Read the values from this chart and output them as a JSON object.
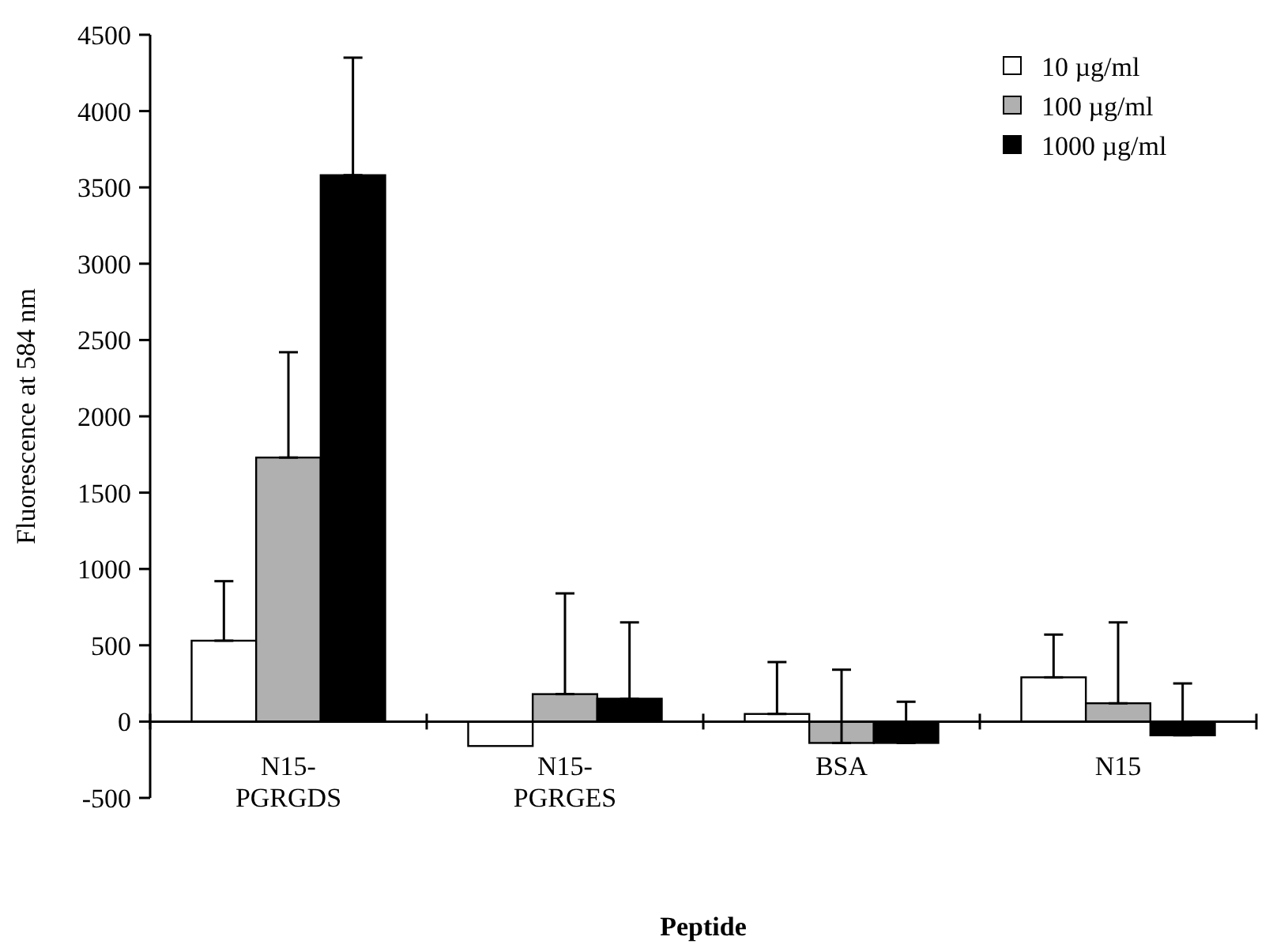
{
  "chart_data": {
    "type": "bar",
    "xlabel": "Peptide",
    "ylabel": "Fluorescence at 584 nm",
    "categories": [
      "N15-\nPGRGDS",
      "N15-\nPGRGES",
      "BSA",
      "N15"
    ],
    "series": [
      {
        "name": "10 µg/ml",
        "color": "#ffffff",
        "values": [
          530,
          -160,
          50,
          290
        ],
        "errors": [
          [
            530,
            920
          ],
          null,
          [
            50,
            390
          ],
          [
            290,
            570
          ]
        ]
      },
      {
        "name": "100 µg/ml",
        "color": "#b0b0b0",
        "values": [
          1730,
          180,
          -140,
          120
        ],
        "errors": [
          [
            1730,
            2420
          ],
          [
            180,
            840
          ],
          [
            -140,
            340
          ],
          [
            120,
            650
          ]
        ]
      },
      {
        "name": "1000 µg/ml",
        "color": "#000000",
        "values": [
          3580,
          150,
          -140,
          -90
        ],
        "errors": [
          [
            3580,
            4350
          ],
          [
            150,
            650
          ],
          [
            -140,
            130
          ],
          [
            -90,
            250
          ]
        ]
      }
    ],
    "ylim": [
      -500,
      4500
    ],
    "yticks": [
      -500,
      0,
      500,
      1000,
      1500,
      2000,
      2500,
      3000,
      3500,
      4000,
      4500
    ],
    "grid": false,
    "legend": "top right"
  }
}
